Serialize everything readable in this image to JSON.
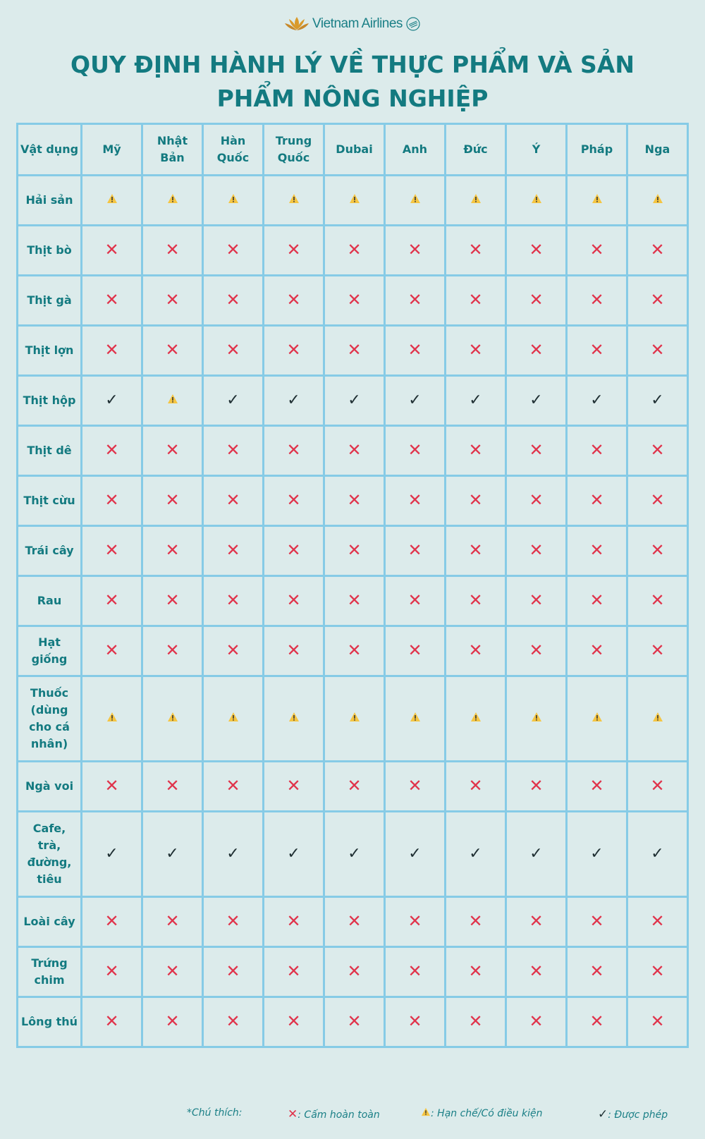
{
  "brand": {
    "name": "Vietnam Airlines",
    "logo_color": "#d99a2b"
  },
  "title": "QUY ĐỊNH HÀNH LÝ VỀ THỰC PHẨM VÀ SẢN PHẨM NÔNG NGHIỆP",
  "colors": {
    "text": "#137a80",
    "border": "#86cbe6",
    "background": "#dcebeb",
    "forbidden": "#e0334b",
    "restricted": "#f5c542",
    "allowed": "#1f2f33"
  },
  "table": {
    "columns": [
      "Vật dụng",
      "Mỹ",
      "Nhật Bản",
      "Hàn Quốc",
      "Trung Quốc",
      "Dubai",
      "Anh",
      "Đức",
      "Ý",
      "Pháp",
      "Nga"
    ],
    "rows": [
      {
        "item": "Hải sản",
        "values": [
          "warn",
          "warn",
          "warn",
          "warn",
          "warn",
          "warn",
          "warn",
          "warn",
          "warn",
          "warn"
        ]
      },
      {
        "item": "Thịt bò",
        "values": [
          "x",
          "x",
          "x",
          "x",
          "x",
          "x",
          "x",
          "x",
          "x",
          "x"
        ]
      },
      {
        "item": "Thịt gà",
        "values": [
          "x",
          "x",
          "x",
          "x",
          "x",
          "x",
          "x",
          "x",
          "x",
          "x"
        ]
      },
      {
        "item": "Thịt lợn",
        "values": [
          "x",
          "x",
          "x",
          "x",
          "x",
          "x",
          "x",
          "x",
          "x",
          "x"
        ]
      },
      {
        "item": "Thịt hộp",
        "values": [
          "ok",
          "warn",
          "ok",
          "ok",
          "ok",
          "ok",
          "ok",
          "ok",
          "ok",
          "ok"
        ]
      },
      {
        "item": "Thịt dê",
        "values": [
          "x",
          "x",
          "x",
          "x",
          "x",
          "x",
          "x",
          "x",
          "x",
          "x"
        ]
      },
      {
        "item": "Thịt cừu",
        "values": [
          "x",
          "x",
          "x",
          "x",
          "x",
          "x",
          "x",
          "x",
          "x",
          "x"
        ]
      },
      {
        "item": "Trái cây",
        "values": [
          "x",
          "x",
          "x",
          "x",
          "x",
          "x",
          "x",
          "x",
          "x",
          "x"
        ]
      },
      {
        "item": "Rau",
        "values": [
          "x",
          "x",
          "x",
          "x",
          "x",
          "x",
          "x",
          "x",
          "x",
          "x"
        ]
      },
      {
        "item": "Hạt giống",
        "values": [
          "x",
          "x",
          "x",
          "x",
          "x",
          "x",
          "x",
          "x",
          "x",
          "x"
        ]
      },
      {
        "item": "Thuốc (dùng cho cá nhân)",
        "values": [
          "warn",
          "warn",
          "warn",
          "warn",
          "warn",
          "warn",
          "warn",
          "warn",
          "warn",
          "warn"
        ],
        "tall": true
      },
      {
        "item": "Ngà voi",
        "values": [
          "x",
          "x",
          "x",
          "x",
          "x",
          "x",
          "x",
          "x",
          "x",
          "x"
        ]
      },
      {
        "item": "Cafe, trà, đường, tiêu",
        "values": [
          "ok",
          "ok",
          "ok",
          "ok",
          "ok",
          "ok",
          "ok",
          "ok",
          "ok",
          "ok"
        ],
        "tall": true
      },
      {
        "item": "Loài cây",
        "values": [
          "x",
          "x",
          "x",
          "x",
          "x",
          "x",
          "x",
          "x",
          "x",
          "x"
        ]
      },
      {
        "item": "Trứng chim",
        "values": [
          "x",
          "x",
          "x",
          "x",
          "x",
          "x",
          "x",
          "x",
          "x",
          "x"
        ]
      },
      {
        "item": "Lông thú",
        "values": [
          "x",
          "x",
          "x",
          "x",
          "x",
          "x",
          "x",
          "x",
          "x",
          "x"
        ]
      }
    ]
  },
  "legend": {
    "label": "*Chú thích:",
    "forbidden": ": Cấm hoàn toàn",
    "restricted": ": Hạn chế/Có điều kiện",
    "allowed": ":  Được phép"
  }
}
